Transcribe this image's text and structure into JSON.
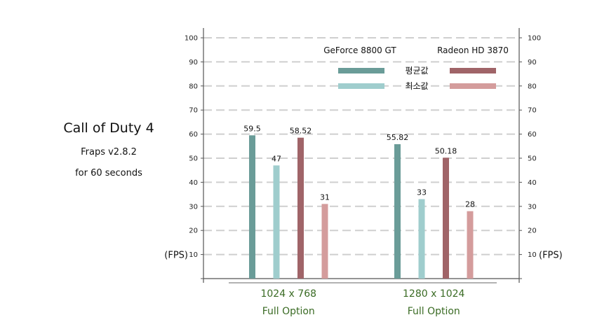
{
  "side_title": "Call of Duty 4",
  "side_line1": "Fraps v2.8.2",
  "side_line2": "for 60 seconds",
  "chart_data": {
    "type": "bar",
    "title": "Call of Duty 4",
    "ylabel": "(FPS)",
    "ylim": [
      0,
      100
    ],
    "y_ticks": [
      10,
      20,
      30,
      40,
      50,
      60,
      70,
      80,
      90,
      100
    ],
    "grid": true,
    "categories": [
      {
        "line1": "1024 x 768",
        "line2": "Full Option"
      },
      {
        "line1": "1280 x 1024",
        "line2": "Full Option"
      }
    ],
    "gpus": [
      "GeForce 8800 GT",
      "Radeon HD 3870"
    ],
    "metrics": [
      "평균값",
      "최소값"
    ],
    "series": [
      {
        "gpu": "GeForce 8800 GT",
        "metric": "평균값",
        "color": "#6a9c98",
        "values": [
          59.5,
          55.82
        ],
        "labels": [
          "59.5",
          "55.82"
        ]
      },
      {
        "gpu": "GeForce 8800 GT",
        "metric": "최소값",
        "color": "#9fcdcd",
        "values": [
          47,
          33
        ],
        "labels": [
          "47",
          "33"
        ]
      },
      {
        "gpu": "Radeon HD 3870",
        "metric": "평균값",
        "color": "#a06468",
        "values": [
          58.52,
          50.18
        ],
        "labels": [
          "58.52",
          "50.18"
        ]
      },
      {
        "gpu": "Radeon HD 3870",
        "metric": "최소값",
        "color": "#d49c9c",
        "values": [
          31,
          28
        ],
        "labels": [
          "31",
          "28"
        ]
      }
    ]
  }
}
